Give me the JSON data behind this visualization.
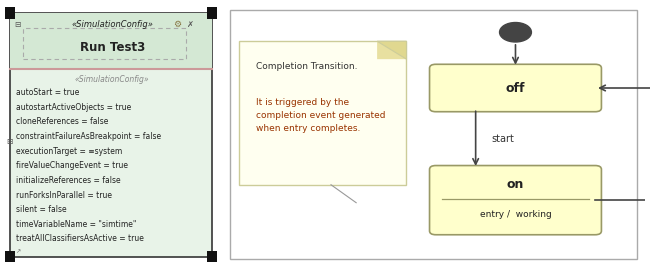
{
  "left_panel": {
    "bg_color": "#e8f3e8",
    "border_color": "#444444",
    "header_bg": "#d4e8d4",
    "header_stereotype": "«SimulationConfig»",
    "header_title": "Run Test3",
    "sub_stereotype": "«SimulationConfig»",
    "properties": [
      "autoStart = true",
      "autostartActiveObjects = true",
      "cloneReferences = false",
      "constraintFailureAsBreakpoint = false",
      "executionTarget = ≡system",
      "fireValueChangeEvent = true",
      "initializeReferences = false",
      "runForksInParallel = true",
      "silent = false",
      "timeVariableName = \"simtime\"",
      "treatAllClassifiersAsActive = true"
    ]
  },
  "right_panel": {
    "note_bg": "#fffff0",
    "note_border": "#cccc99",
    "note_title": "Completion Transition.",
    "note_body": "It is triggered by the\ncompletion event generated\nwhen entry completes.",
    "note_title_color": "#333333",
    "note_body_color": "#993300",
    "state_fill": "#ffffcc",
    "state_border": "#999966",
    "state_off_label": "off",
    "state_on_label": "on",
    "state_on_sub": "entry /  working",
    "transition_start": "start",
    "transition_off": "off",
    "arrow_color": "#444444",
    "init_dot_color": "#444444"
  }
}
